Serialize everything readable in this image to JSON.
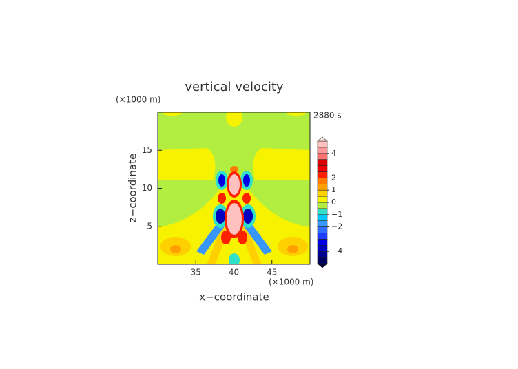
{
  "chart_data": {
    "type": "contour",
    "title": "vertical velocity",
    "time_label": "2880 s",
    "x_label": "x−coordinate",
    "x_unit": "(×1000 m)",
    "y_label": "z−coordinate",
    "y_unit": "(×1000 m)",
    "xlim": [
      30,
      50
    ],
    "xticks": [
      35,
      40,
      45
    ],
    "ylim": [
      0,
      20
    ],
    "yticks": [
      5,
      10,
      15
    ],
    "colorbar": {
      "levels": [
        -5,
        -4.5,
        -4,
        -3.5,
        -3,
        -2.5,
        -2,
        -1.5,
        -1,
        -0.5,
        0,
        0.5,
        1,
        1.5,
        2,
        2.5,
        3,
        3.5,
        4,
        4.5,
        5
      ],
      "colors": [
        "#000060",
        "#000090",
        "#0000c0",
        "#0000e8",
        "#1c3cff",
        "#2f6cff",
        "#3a96ff",
        "#00c8ff",
        "#30e0c8",
        "#b2ee40",
        "#f6f200",
        "#ffd000",
        "#ffa000",
        "#ff7800",
        "#ff2000",
        "#f00000",
        "#d80000",
        "#ff7070",
        "#ff9898",
        "#ffc0c0"
      ],
      "under_color": "#000030",
      "over_color": "#ffe0e0",
      "ticks": [
        {
          "value": 4,
          "label": "4"
        },
        {
          "value": 2,
          "label": "2"
        },
        {
          "value": 1,
          "label": "1"
        },
        {
          "value": 0,
          "label": "0"
        },
        {
          "value": -1,
          "label": "−1"
        },
        {
          "value": -2,
          "label": "−2"
        },
        {
          "value": -4,
          "label": "−4"
        }
      ]
    }
  }
}
